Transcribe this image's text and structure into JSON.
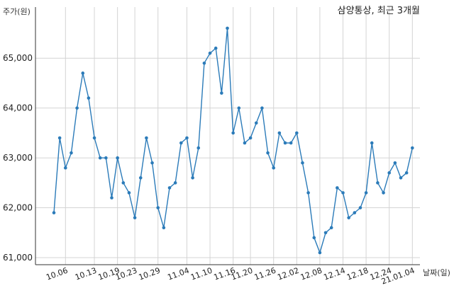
{
  "chart_data": {
    "type": "line",
    "title": "삼양통상, 최근 3개월",
    "xlabel": "날짜(일)",
    "ylabel": "주가(원)",
    "ylim": [
      61000,
      65800
    ],
    "y_ticks": [
      61000,
      62000,
      63000,
      64000,
      65000
    ],
    "y_tick_labels": [
      "61,000",
      "62,000",
      "63,000",
      "64,000",
      "65,000"
    ],
    "x_tick_labels": [
      "10.06",
      "10.13",
      "10.19",
      "10.23",
      "10.29",
      "11.04",
      "11.10",
      "11.16",
      "11.20",
      "11.26",
      "12.02",
      "12.08",
      "12.14",
      "12.18",
      "12.24",
      "21.01.04"
    ],
    "x_tick_indices": [
      2,
      7,
      11,
      14,
      18,
      23,
      27,
      31,
      34,
      38,
      42,
      46,
      50,
      54,
      58,
      62
    ],
    "grid": true,
    "line_color": "#2b7bb9",
    "series": [
      {
        "values": [
          61900,
          63400,
          62800,
          63100,
          64000,
          64700,
          64200,
          63400,
          63000,
          63000,
          62200,
          63000,
          62500,
          62300,
          61800,
          62600,
          63400,
          62900,
          62000,
          61600,
          62400,
          62500,
          63300,
          63400,
          62600,
          63200,
          64900,
          65100,
          65200,
          64300,
          65600,
          63500,
          64000,
          63300,
          63400,
          63700,
          64000,
          63100,
          62800,
          63500,
          63300,
          63300,
          63500,
          62900,
          62300,
          61400,
          61100,
          61500,
          61600,
          62400,
          62300,
          61800,
          61900,
          62000,
          62300,
          63300,
          62500,
          62300,
          62700,
          62900,
          62600,
          62700,
          63200
        ]
      }
    ]
  }
}
